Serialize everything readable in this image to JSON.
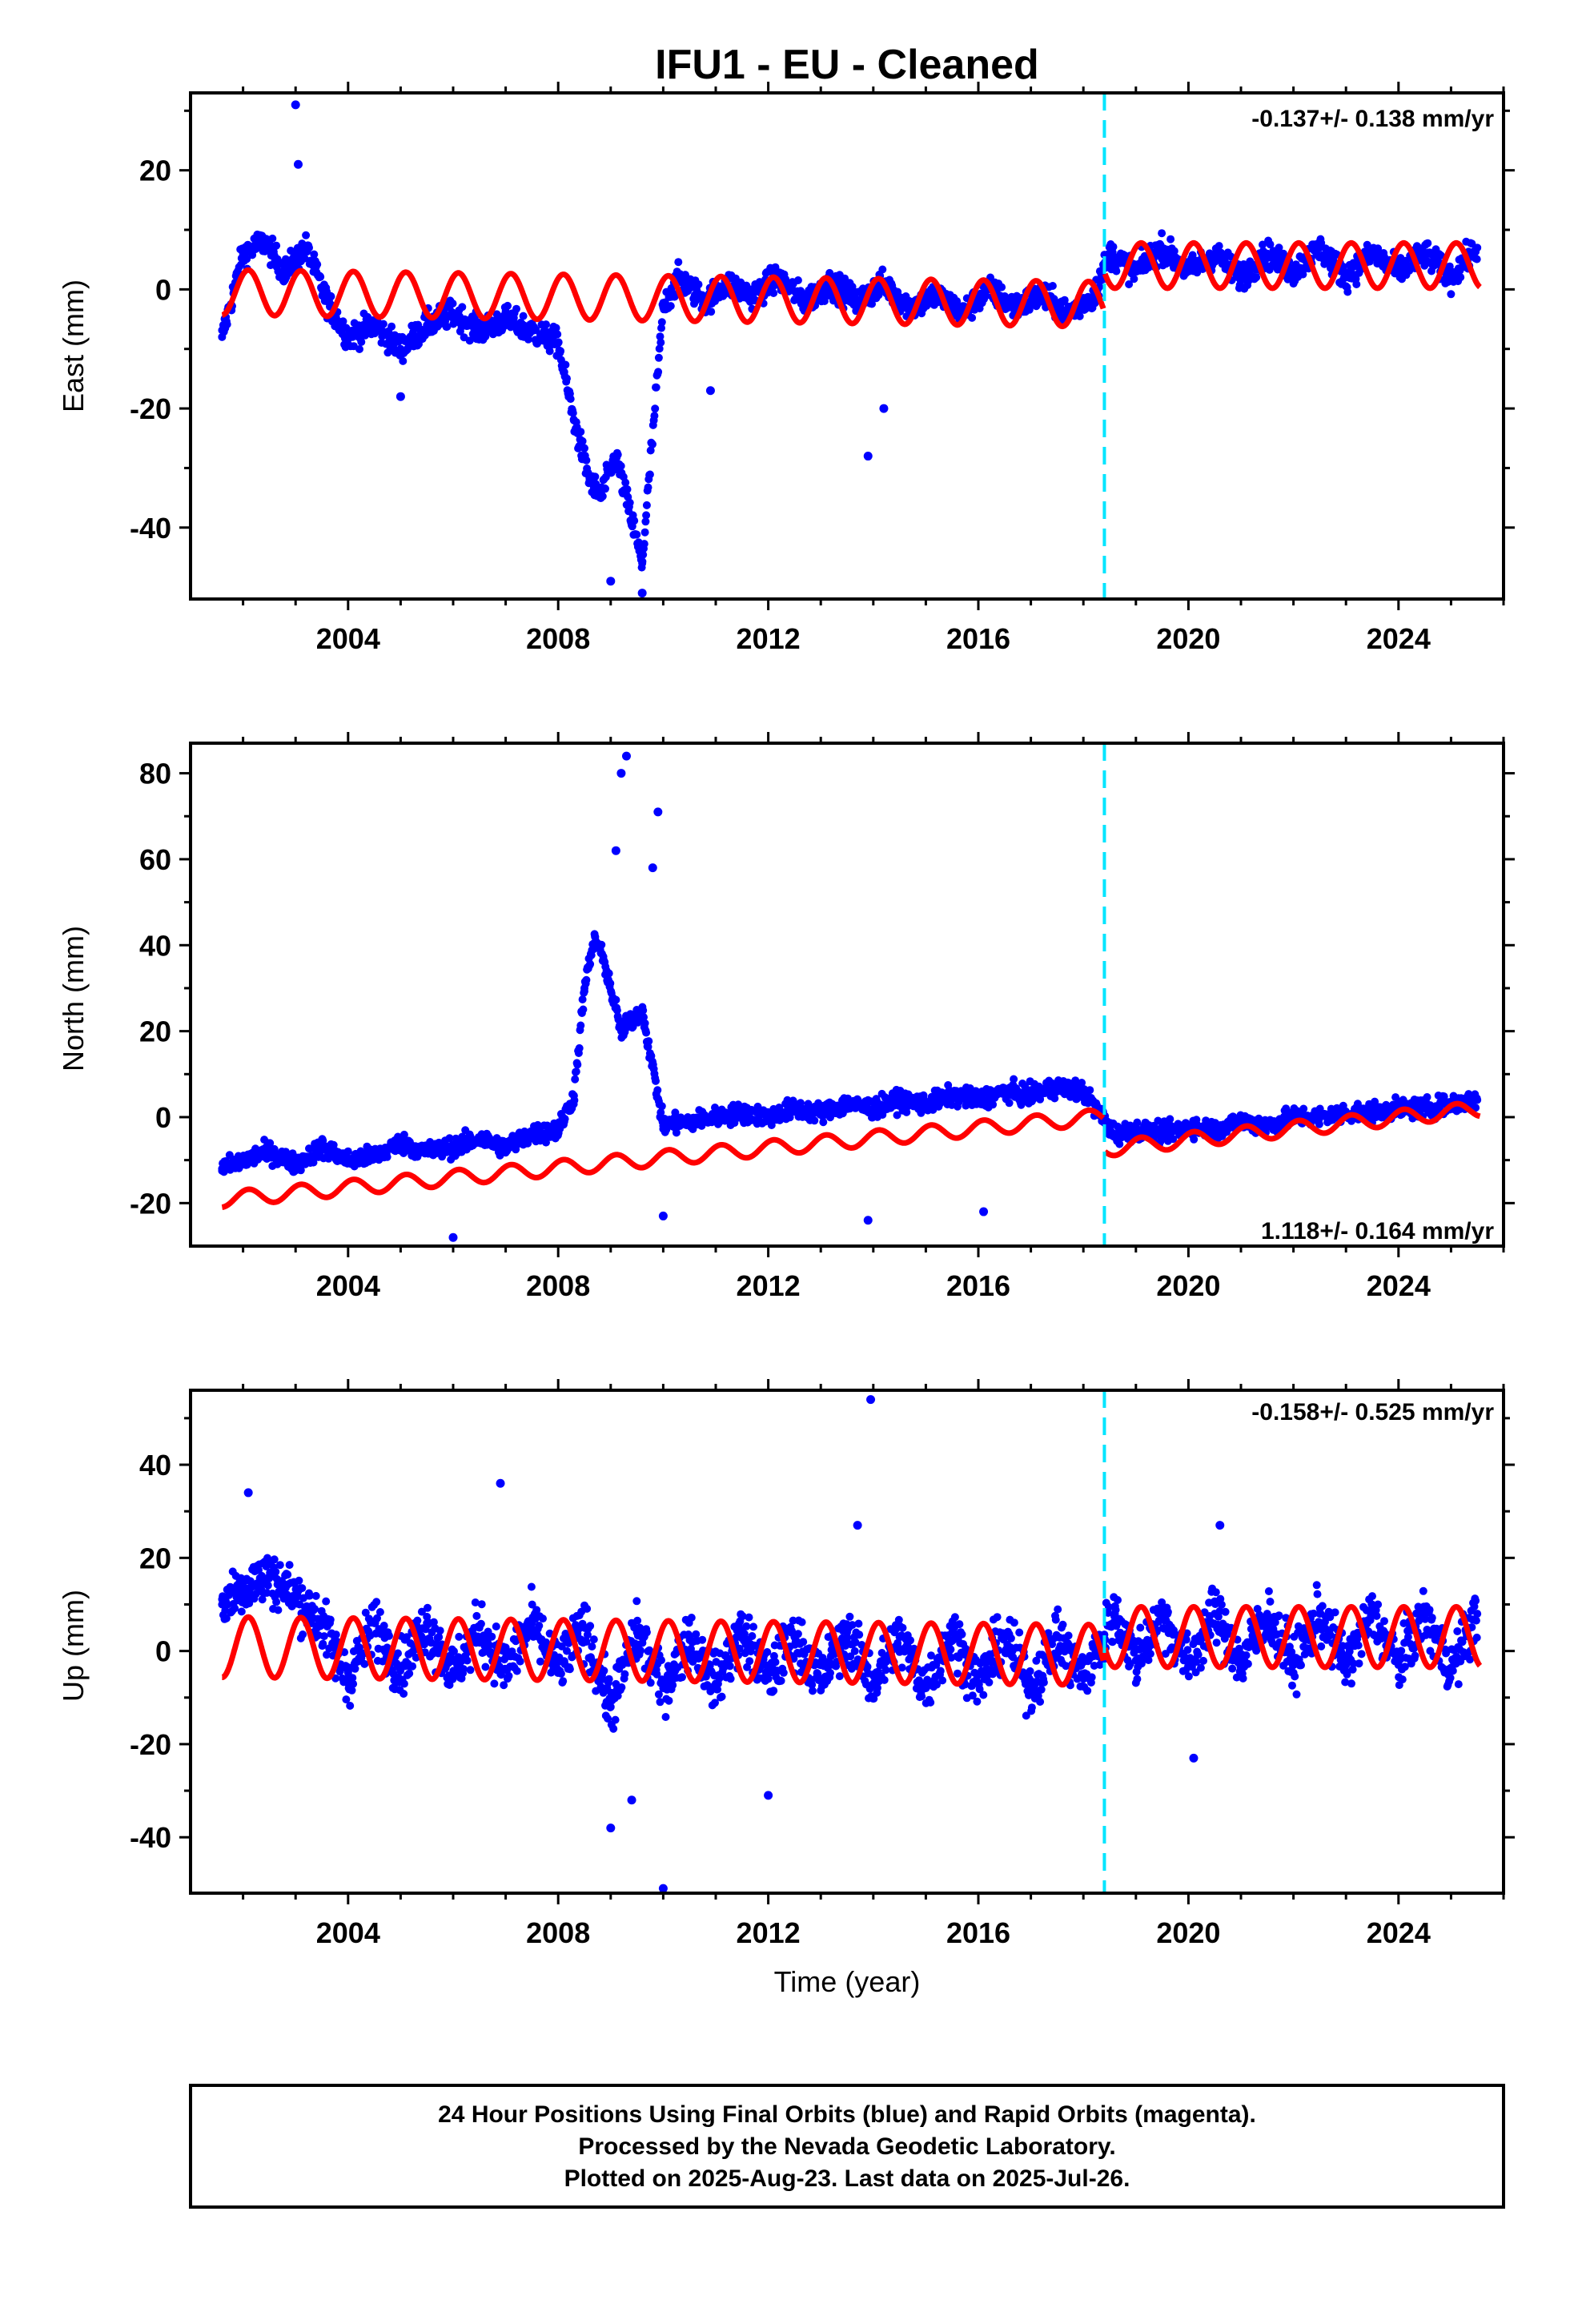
{
  "title": "IFU1  - EU - Cleaned",
  "colors": {
    "final_orbits": "#0000ff",
    "rapid_orbits": "#ff00ff",
    "model": "#ff0000",
    "equipment_change": "#00e5ff"
  },
  "chart_data": [
    {
      "type": "scatter",
      "panel": "east",
      "ylabel": "East (mm)",
      "xlabel": "",
      "xlim": [
        2001.0,
        2026.0
      ],
      "ylim": [
        -52,
        33
      ],
      "xticks": [
        2004,
        2008,
        2012,
        2016,
        2020,
        2024
      ],
      "yticks": [
        -40,
        -20,
        0,
        20
      ],
      "rate_label": "-0.137+/- 0.138 mm/yr",
      "rate_position": "top-right",
      "offset_epoch": 2018.4,
      "model": {
        "amplitude": 3.8,
        "offset_before": -1.5,
        "offset_after": 4.0,
        "trend_before": -0.12,
        "trend_after": 0.0
      },
      "x": [
        2001.6,
        2002.0,
        2002.4,
        2002.8,
        2003.2,
        2003.6,
        2004.0,
        2004.5,
        2005.0,
        2005.5,
        2006.0,
        2006.5,
        2007.0,
        2007.5,
        2008.0,
        2008.3,
        2008.6,
        2008.8,
        2009.1,
        2009.6,
        2010.0,
        2010.3,
        2010.8,
        2011.2,
        2011.7,
        2012.2,
        2012.7,
        2013.2,
        2013.7,
        2014.2,
        2014.7,
        2015.2,
        2015.7,
        2016.2,
        2016.7,
        2017.2,
        2017.7,
        2018.2,
        2018.5,
        2019.0,
        2019.5,
        2020.0,
        2020.5,
        2021.0,
        2021.5,
        2022.0,
        2022.5,
        2023.0,
        2023.5,
        2024.0,
        2024.5,
        2025.0,
        2025.5
      ],
      "y": [
        -8,
        6,
        8,
        3,
        7,
        -2,
        -8,
        -6,
        -10,
        -6,
        -4,
        -7,
        -5,
        -7,
        -9,
        -22,
        -32,
        -35,
        -28,
        -46,
        -3,
        2,
        -2,
        1,
        -1,
        2,
        -2,
        1,
        -2,
        1,
        -3,
        -1,
        -4,
        0,
        -3,
        -1,
        -4,
        -1,
        6,
        3,
        7,
        3,
        6,
        2,
        6,
        3,
        7,
        2,
        6,
        3,
        6,
        2,
        7
      ],
      "outliers": [
        {
          "x": 2003.0,
          "y": 31
        },
        {
          "x": 2003.05,
          "y": 21
        },
        {
          "x": 2013.9,
          "y": -28
        },
        {
          "x": 2014.2,
          "y": -20
        },
        {
          "x": 2010.9,
          "y": -17
        },
        {
          "x": 2009.6,
          "y": -51
        },
        {
          "x": 2009.0,
          "y": -49
        },
        {
          "x": 2005.0,
          "y": -18
        }
      ]
    },
    {
      "type": "scatter",
      "panel": "north",
      "ylabel": "North (mm)",
      "xlabel": "",
      "xlim": [
        2001.0,
        2026.0
      ],
      "ylim": [
        -30,
        87
      ],
      "xticks": [
        2004,
        2008,
        2012,
        2016,
        2020,
        2024
      ],
      "yticks": [
        -20,
        0,
        20,
        40,
        60,
        80
      ],
      "rate_label": "1.118+/- 0.164 mm/yr",
      "rate_position": "bottom-right",
      "offset_epoch": 2018.4,
      "model": {
        "amplitude": 1.8,
        "offset_before": -9.5,
        "offset_after": -4.0,
        "trend_before": 1.15,
        "trend_after": 1.3
      },
      "x": [
        2001.6,
        2002.0,
        2002.5,
        2003.0,
        2003.5,
        2004.0,
        2004.5,
        2005.0,
        2005.5,
        2006.0,
        2006.5,
        2007.0,
        2007.5,
        2008.0,
        2008.3,
        2008.5,
        2008.7,
        2008.9,
        2009.2,
        2009.6,
        2010.0,
        2010.5,
        2011.0,
        2011.5,
        2012.0,
        2012.5,
        2013.0,
        2013.5,
        2014.0,
        2014.5,
        2015.0,
        2015.5,
        2016.0,
        2016.5,
        2017.0,
        2017.5,
        2018.0,
        2018.6,
        2019.0,
        2019.5,
        2020.0,
        2020.5,
        2021.0,
        2021.5,
        2022.0,
        2022.5,
        2023.0,
        2023.5,
        2024.0,
        2024.5,
        2025.0,
        2025.5
      ],
      "y": [
        -12,
        -10,
        -8,
        -11,
        -7,
        -10,
        -9,
        -6,
        -8,
        -7,
        -5,
        -7,
        -4,
        -3,
        5,
        30,
        42,
        35,
        20,
        25,
        -2,
        -1,
        0,
        1,
        0,
        2,
        1,
        3,
        2,
        4,
        3,
        5,
        4,
        6,
        5,
        7,
        6,
        -4,
        -3,
        -4,
        -2,
        -3,
        -1,
        -2,
        0,
        0,
        1,
        1,
        2,
        2,
        3,
        4
      ],
      "outliers": [
        {
          "x": 2009.3,
          "y": 84
        },
        {
          "x": 2009.2,
          "y": 80
        },
        {
          "x": 2009.9,
          "y": 71
        },
        {
          "x": 2009.1,
          "y": 62
        },
        {
          "x": 2009.8,
          "y": 58
        },
        {
          "x": 2006.0,
          "y": -28
        },
        {
          "x": 2013.9,
          "y": -24
        },
        {
          "x": 2016.1,
          "y": -22
        },
        {
          "x": 2010.0,
          "y": -23
        }
      ]
    },
    {
      "type": "scatter",
      "panel": "up",
      "ylabel": "Up (mm)",
      "xlabel": "Time (year)",
      "xlim": [
        2001.0,
        2026.0
      ],
      "ylim": [
        -52,
        56
      ],
      "xticks": [
        2004,
        2008,
        2012,
        2016,
        2020,
        2024
      ],
      "yticks": [
        -40,
        -20,
        0,
        20,
        40
      ],
      "rate_label": "-0.158+/- 0.525 mm/yr",
      "rate_position": "top-right",
      "offset_epoch": 2018.4,
      "model": {
        "amplitude": 6.5,
        "offset_before": 0.0,
        "offset_after": 3.0,
        "trend_before": -0.1,
        "trend_after": 0.0
      },
      "x": [
        2001.6,
        2002.0,
        2002.5,
        2003.0,
        2003.5,
        2004.0,
        2004.5,
        2005.0,
        2005.5,
        2006.0,
        2006.5,
        2007.0,
        2007.5,
        2008.0,
        2008.5,
        2009.0,
        2009.5,
        2010.0,
        2010.5,
        2011.0,
        2011.5,
        2012.0,
        2012.5,
        2013.0,
        2013.5,
        2014.0,
        2014.5,
        2015.0,
        2015.5,
        2016.0,
        2016.5,
        2017.0,
        2017.5,
        2018.0,
        2018.6,
        2019.0,
        2019.5,
        2020.0,
        2020.5,
        2021.0,
        2021.5,
        2022.0,
        2022.5,
        2023.0,
        2023.5,
        2024.0,
        2024.5,
        2025.0,
        2025.5
      ],
      "y": [
        10,
        14,
        16,
        12,
        6,
        -6,
        6,
        -4,
        6,
        -5,
        5,
        -4,
        6,
        -4,
        5,
        -12,
        4,
        -8,
        3,
        -7,
        4,
        -6,
        3,
        -6,
        4,
        -7,
        3,
        -8,
        4,
        -7,
        3,
        -8,
        3,
        -6,
        8,
        -2,
        8,
        -3,
        8,
        -3,
        8,
        -3,
        8,
        -3,
        8,
        -3,
        8,
        -4,
        8
      ],
      "outliers": [
        {
          "x": 2013.95,
          "y": 54
        },
        {
          "x": 2006.9,
          "y": 36
        },
        {
          "x": 2002.1,
          "y": 34
        },
        {
          "x": 2013.7,
          "y": 27
        },
        {
          "x": 2020.6,
          "y": 27
        },
        {
          "x": 2009.0,
          "y": -38
        },
        {
          "x": 2010.0,
          "y": -51
        },
        {
          "x": 2012.0,
          "y": -31
        },
        {
          "x": 2020.1,
          "y": -23
        },
        {
          "x": 2009.4,
          "y": -32
        }
      ]
    }
  ],
  "footer": {
    "line1": "24 Hour Positions Using Final Orbits (blue) and Rapid Orbits (magenta).",
    "line2": "Processed by the Nevada Geodetic Laboratory.",
    "line3": "Plotted on 2025-Aug-23. Last data on 2025-Jul-26."
  }
}
